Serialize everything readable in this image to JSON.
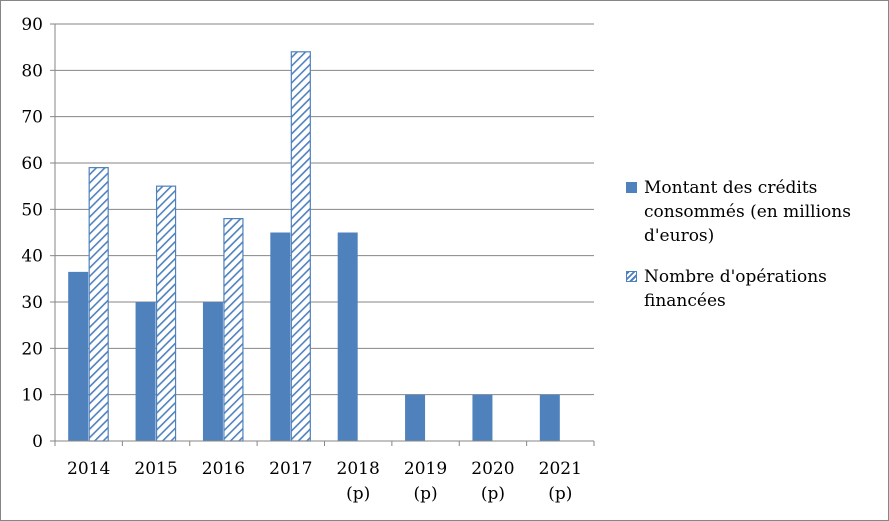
{
  "chart_data": {
    "type": "bar",
    "title": "",
    "xlabel": "",
    "ylabel": "",
    "ylim": [
      0,
      90
    ],
    "yticks": [
      0,
      10,
      20,
      30,
      40,
      50,
      60,
      70,
      80,
      90
    ],
    "grid": true,
    "legend_position": "right",
    "categories": [
      [
        "2014"
      ],
      [
        "2015"
      ],
      [
        "2016"
      ],
      [
        "2017"
      ],
      [
        "2018",
        "(p)"
      ],
      [
        "2019",
        "(p)"
      ],
      [
        "2020",
        "(p)"
      ],
      [
        "2021",
        "(p)"
      ]
    ],
    "series": [
      {
        "name": "Montant des crédits consommés (en millions d'euros)",
        "legend_lines": [
          "Montant des crédits",
          "consommés (en millions",
          "d'euros)"
        ],
        "fill": "solid",
        "color": "#4f81bd",
        "values": [
          36.5,
          30,
          30,
          45,
          45,
          10,
          10,
          10
        ]
      },
      {
        "name": "Nombre d'opérations financées",
        "legend_lines": [
          "Nombre d'opérations",
          "financées"
        ],
        "fill": "hatched",
        "color": "#4f81bd",
        "values": [
          59,
          55,
          48,
          84,
          null,
          null,
          null,
          null
        ]
      }
    ]
  }
}
